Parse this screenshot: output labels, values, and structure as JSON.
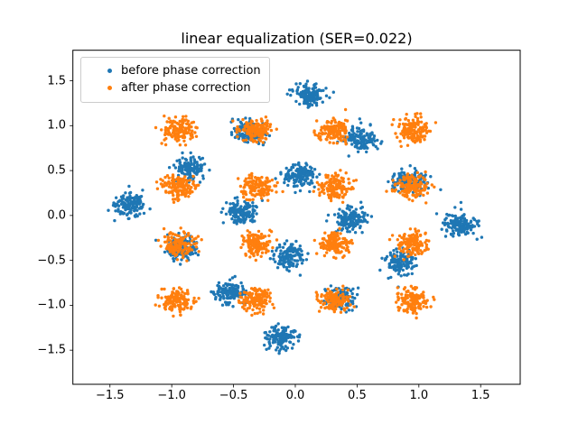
{
  "title": "linear equalization (SER=0.022)",
  "legend": {
    "items": [
      {
        "label": "before phase correction",
        "color": "#1f77b4"
      },
      {
        "label": "after phase correction",
        "color": "#ff7f0e"
      }
    ]
  },
  "chart_data": {
    "type": "scatter",
    "title": "linear equalization (SER=0.022)",
    "ser": 0.022,
    "xlim": [
      -1.8,
      1.82
    ],
    "ylim": [
      -1.88,
      1.84
    ],
    "grid": false,
    "legend_position": "upper left",
    "xticks": {
      "values": [
        -1.5,
        -1.0,
        -0.5,
        0.0,
        0.5,
        1.0,
        1.5
      ],
      "labels": [
        "−1.5",
        "−1.0",
        "−0.5",
        "0.0",
        "0.5",
        "1.0",
        "1.5"
      ]
    },
    "yticks": {
      "values": [
        1.5,
        1.0,
        0.5,
        0.0,
        -0.5,
        -1.0,
        -1.5
      ],
      "labels": [
        "1.5",
        "1.0",
        "0.5",
        "0.0",
        "−0.5",
        "−1.0",
        "−1.5"
      ]
    },
    "marker_radius_px": 1.7,
    "series": [
      {
        "name": "before phase correction",
        "color": "#1f77b4",
        "pattern": "16-QAM constellation rotated by ~40 degrees",
        "noise_sigma": 0.065,
        "points_per_cluster": 140,
        "cluster_centers": [
          [
            0.039,
            0.445
          ],
          [
            -0.368,
            0.93
          ],
          [
            0.445,
            -0.039
          ],
          [
            0.852,
            -0.524
          ],
          [
            -0.445,
            0.039
          ],
          [
            -0.852,
            0.524
          ],
          [
            -0.039,
            -0.445
          ],
          [
            0.368,
            -0.93
          ],
          [
            0.524,
            0.852
          ],
          [
            0.117,
            1.337
          ],
          [
            0.93,
            0.368
          ],
          [
            1.337,
            -0.117
          ],
          [
            -0.93,
            -0.368
          ],
          [
            -1.337,
            0.117
          ],
          [
            -0.524,
            -0.852
          ],
          [
            -0.117,
            -1.337
          ]
        ]
      },
      {
        "name": "after phase correction",
        "color": "#ff7f0e",
        "pattern": "16-QAM constellation",
        "noise_sigma": 0.065,
        "points_per_cluster": 140,
        "cluster_centers": [
          [
            0.316,
            0.316
          ],
          [
            0.316,
            0.949
          ],
          [
            0.316,
            -0.316
          ],
          [
            0.316,
            -0.949
          ],
          [
            -0.316,
            0.316
          ],
          [
            -0.316,
            0.949
          ],
          [
            -0.316,
            -0.316
          ],
          [
            -0.316,
            -0.949
          ],
          [
            0.949,
            0.316
          ],
          [
            0.949,
            0.949
          ],
          [
            0.949,
            -0.316
          ],
          [
            0.949,
            -0.949
          ],
          [
            -0.949,
            0.316
          ],
          [
            -0.949,
            0.949
          ],
          [
            -0.949,
            -0.316
          ],
          [
            -0.949,
            -0.949
          ]
        ]
      }
    ]
  }
}
